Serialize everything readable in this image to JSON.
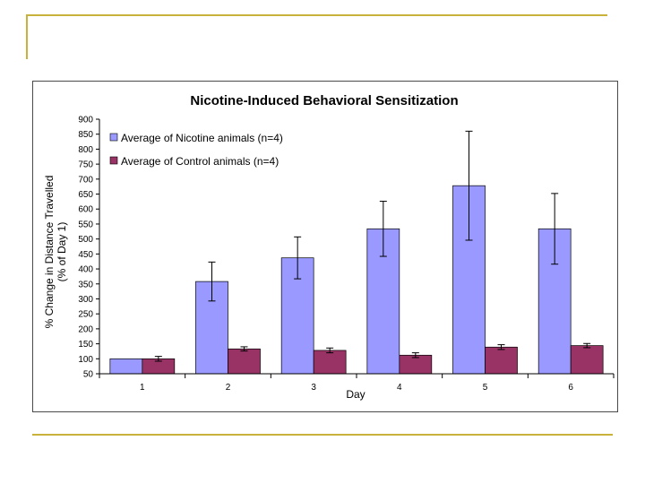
{
  "colors": {
    "nicotine": "#9999ff",
    "control": "#993366",
    "accent_lines": "#c8b23c"
  },
  "chart_data": {
    "type": "bar",
    "title": "Nicotine-Induced Behavioral Sensitization",
    "xlabel": "Day",
    "ylabel_line1": "% Change in Distance Travelled",
    "ylabel_line2": "(% of Day 1)",
    "categories": [
      "1",
      "2",
      "3",
      "4",
      "5",
      "6"
    ],
    "yticks": [
      "50",
      "100",
      "150",
      "200",
      "250",
      "300",
      "350",
      "400",
      "450",
      "500",
      "550",
      "600",
      "650",
      "700",
      "750",
      "800",
      "850",
      "900"
    ],
    "ylim": [
      50,
      900
    ],
    "series": [
      {
        "name": "Average of Nicotine animals (n=4)",
        "values": [
          100,
          358,
          437,
          534,
          678,
          534
        ],
        "error": [
          0,
          65,
          70,
          92,
          182,
          118
        ]
      },
      {
        "name": "Average of Control animals (n=4)",
        "values": [
          100,
          133,
          128,
          112,
          139,
          144
        ],
        "error": [
          8,
          7,
          8,
          8,
          8,
          7
        ]
      }
    ],
    "legend_position": "top-left",
    "grid": false
  }
}
